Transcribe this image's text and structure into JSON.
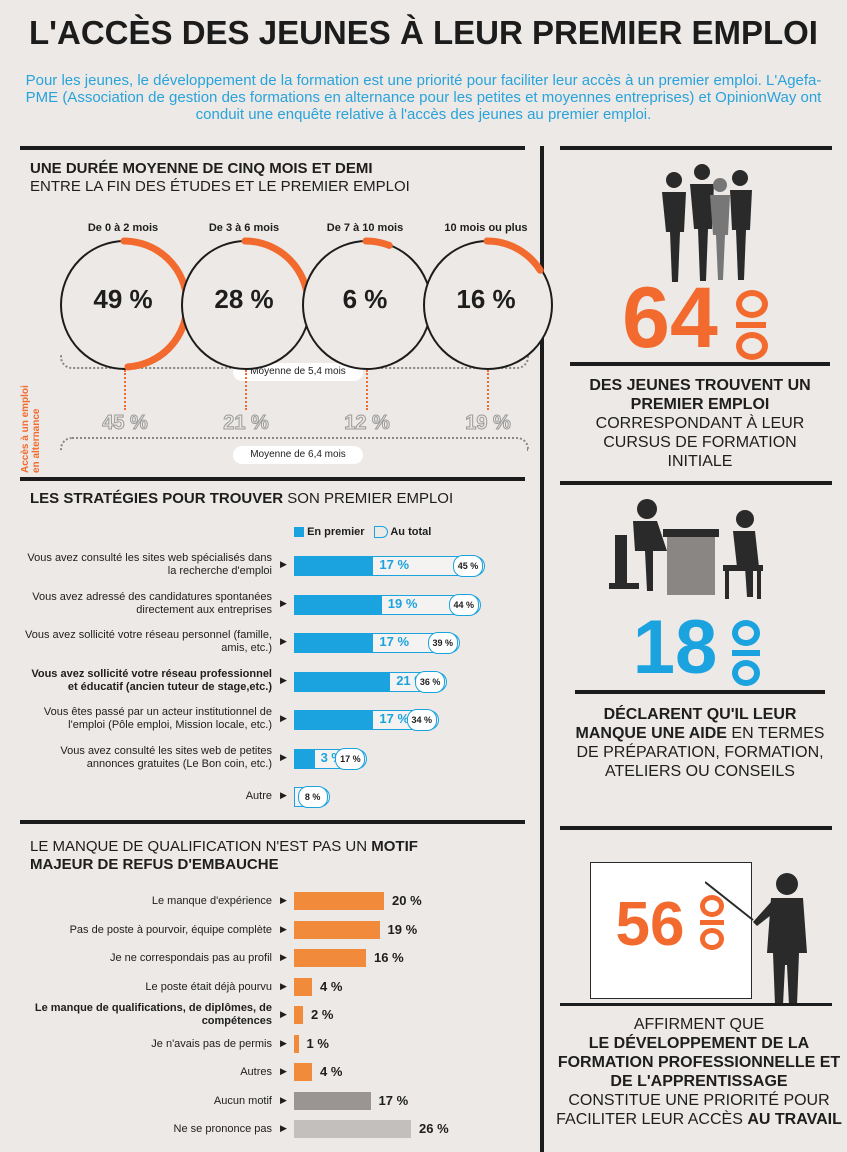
{
  "title": "L'ACCÈS DES JEUNES À LEUR PREMIER EMPLOI",
  "intro": "Pour les jeunes, le développement de la formation est une priorité pour faciliter leur accès à un premier emploi. L'Agefa-PME (Association de gestion des formations en alternance pour les petites et moyennes entreprises) et OpinionWay ont conduit une enquête relative à l'accès des jeunes au premier emploi.",
  "section1": {
    "title_bold": "UNE DURÉE MOYENNE DE CINQ MOIS ET DEMI",
    "title_rest": "ENTRE LA FIN DES ÉTUDES ET LE PREMIER EMPLOI",
    "circles": [
      {
        "label": "De 0 à 2 mois",
        "value": "49 %",
        "pct": 49
      },
      {
        "label": "De 3 à 6 mois",
        "value": "28 %",
        "pct": 28
      },
      {
        "label": "De 7 à 10 mois",
        "value": "6 %",
        "pct": 6
      },
      {
        "label": "10 mois ou plus",
        "value": "16 %",
        "pct": 16
      }
    ],
    "avg1": "Moyenne de 5,4 mois",
    "alternance_label": "Accès à un emploi en alternance",
    "alternance": [
      "45 %",
      "21 %",
      "12 %",
      "19 %"
    ],
    "avg2": "Moyenne de 6,4 mois"
  },
  "section2": {
    "title_bold": "LES STRATÉGIES POUR TROUVER",
    "title_rest": "SON PREMIER EMPLOI",
    "legend_first": "En premier",
    "legend_total": "Au total",
    "rows": [
      {
        "label": "Vous avez consulté les sites web spécialisés dans la recherche d'emploi",
        "first": 17,
        "first_txt": "17 %",
        "total": 45,
        "total_txt": "45 %",
        "bold": false
      },
      {
        "label": "Vous avez adressé des candidatures spontanées directement aux entreprises",
        "first": 19,
        "first_txt": "19 %",
        "total": 44,
        "total_txt": "44 %",
        "bold": false
      },
      {
        "label": "Vous avez  sollicité votre réseau personnel (famille, amis, etc.)",
        "first": 17,
        "first_txt": "17 %",
        "total": 39,
        "total_txt": "39 %",
        "bold": false
      },
      {
        "label": "Vous avez  sollicité votre réseau professionnel et éducatif (ancien tuteur de stage,etc.)",
        "first": 21,
        "first_txt": "21 %",
        "total": 36,
        "total_txt": "36 %",
        "bold": true
      },
      {
        "label": "Vous êtes passé par un acteur institutionnel de l'emploi (Pôle emploi, Mission locale, etc.)",
        "first": 17,
        "first_txt": "17 %",
        "total": 34,
        "total_txt": "34 %",
        "bold": false
      },
      {
        "label": "Vous avez consulté les sites web de petites annonces gratuites (Le Bon coin, etc.)",
        "first": 3,
        "first_txt": "3 %",
        "total": 17,
        "total_txt": "17 %",
        "bold": false
      },
      {
        "label": "Autre",
        "first": 0,
        "first_txt": "",
        "total": 8,
        "total_txt": "8 %",
        "bold": false
      }
    ]
  },
  "section3": {
    "title_a": "LE MANQUE DE QUALIFICATION N'EST PAS UN",
    "title_b": "MOTIF",
    "title_c": "MAJEUR DE REFUS D'EMBAUCHE",
    "rows": [
      {
        "label": "Le manque d'expérience",
        "value": 20,
        "txt": "20 %",
        "color": "#f28a3c",
        "bold": false
      },
      {
        "label": "Pas de poste à pourvoir, équipe complète",
        "value": 19,
        "txt": "19 %",
        "color": "#f28a3c",
        "bold": false
      },
      {
        "label": "Je ne correspondais pas au profil",
        "value": 16,
        "txt": "16 %",
        "color": "#f28a3c",
        "bold": false
      },
      {
        "label": "Le poste était déjà pourvu",
        "value": 4,
        "txt": "4 %",
        "color": "#f28a3c",
        "bold": false
      },
      {
        "label": "Le manque de qualifications, de diplômes, de compétences",
        "value": 2,
        "txt": "2 %",
        "color": "#f28a3c",
        "bold": true
      },
      {
        "label": "Je n'avais pas de permis",
        "value": 1,
        "txt": "1 %",
        "color": "#f28a3c",
        "bold": false
      },
      {
        "label": "Autres",
        "value": 4,
        "txt": "4 %",
        "color": "#f28a3c",
        "bold": false
      },
      {
        "label": "Aucun motif",
        "value": 17,
        "txt": "17 %",
        "color": "#9a9593",
        "bold": false
      },
      {
        "label": "Ne se prononce pas",
        "value": 26,
        "txt": "26 %",
        "color": "#c3bfbc",
        "bold": false
      }
    ]
  },
  "right": {
    "stat1": {
      "number": "64",
      "pct": "%",
      "bold": "DES JEUNES TROUVENT UN PREMIER EMPLOI",
      "rest": "CORRESPONDANT À LEUR CURSUS DE FORMATION INITIALE"
    },
    "stat2": {
      "number": "18",
      "pct": "%",
      "bold": "DÉCLARENT QU'IL LEUR MANQUE UNE AIDE",
      "rest": "EN TERMES DE PRÉPARATION, FORMATION, ATELIERS OU CONSEILS"
    },
    "stat3": {
      "number": "56",
      "pct": "%",
      "intro": "AFFIRMENT QUE",
      "bold": "LE DÉVELOPPEMENT DE LA FORMATION PROFESSIONNELLE ET DE L'APPRENTISSAGE",
      "rest": "CONSTITUE UNE PRIORITÉ POUR FACILITER LEUR ACCÈS",
      "end": "AU TRAVAIL"
    }
  },
  "colors": {
    "orange": "#f26a2e",
    "blue": "#1aa3df",
    "dark": "#1c1c1c",
    "bg": "#ece9e6"
  }
}
